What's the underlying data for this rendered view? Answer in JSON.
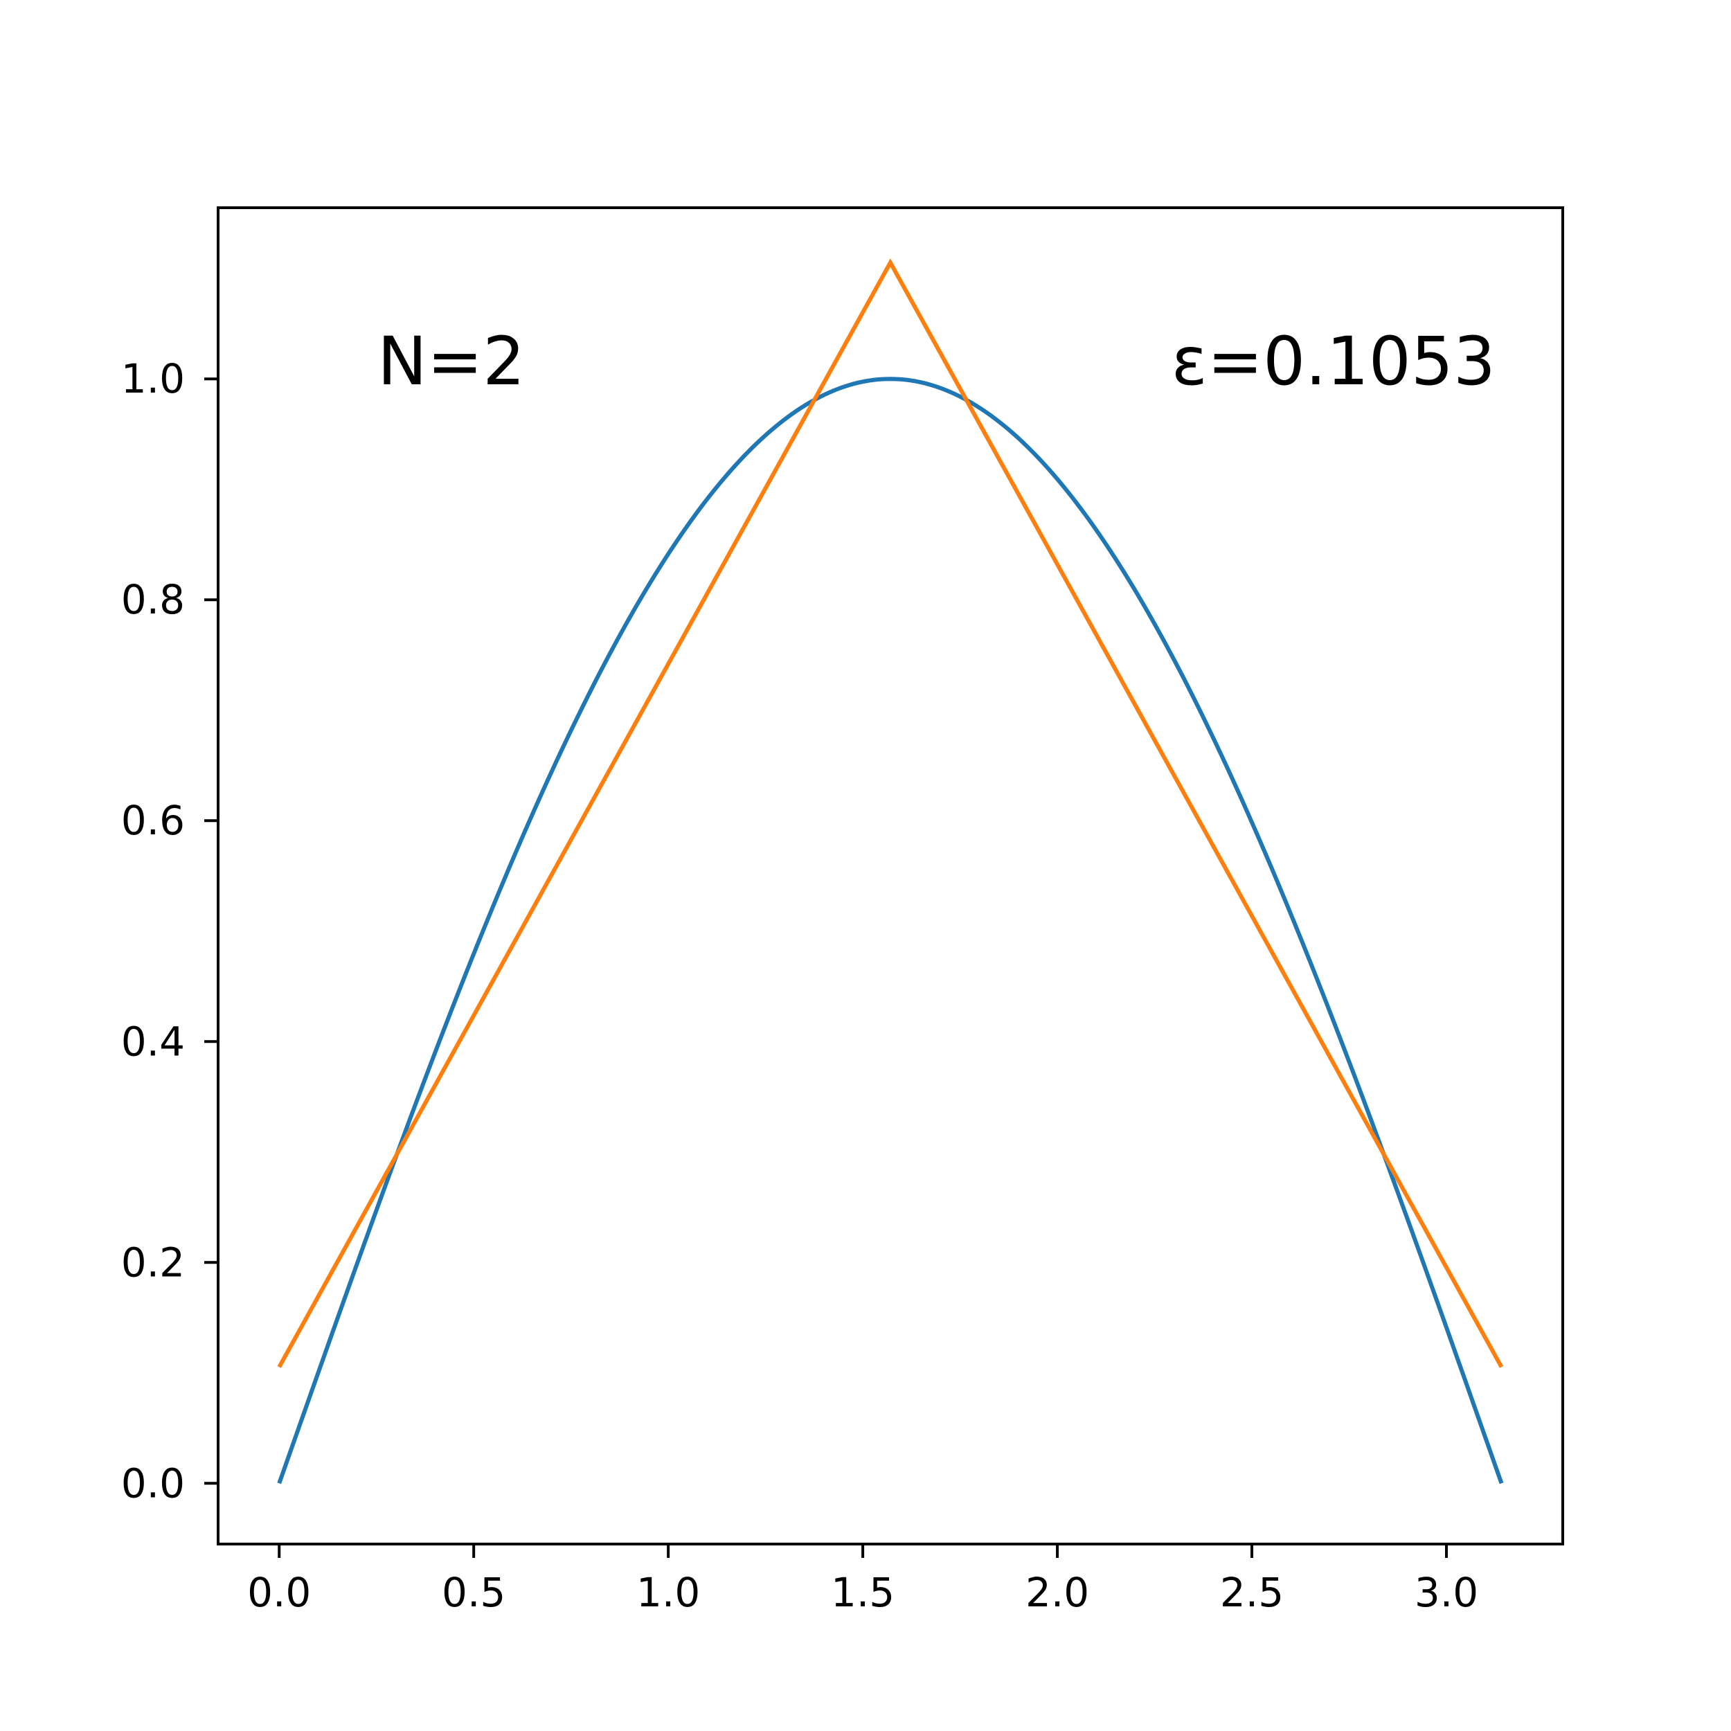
{
  "chart_data": {
    "type": "line",
    "title": "",
    "xlabel": "",
    "ylabel": "",
    "xlim": [
      -0.157,
      3.299
    ],
    "ylim": [
      -0.055,
      1.155
    ],
    "grid": false,
    "xticks": [
      0.0,
      0.5,
      1.0,
      1.5,
      2.0,
      2.5,
      3.0
    ],
    "xtick_labels": [
      "0.0",
      "0.5",
      "1.0",
      "1.5",
      "2.0",
      "2.5",
      "3.0"
    ],
    "yticks": [
      0.0,
      0.2,
      0.4,
      0.6,
      0.8,
      1.0
    ],
    "ytick_labels": [
      "0.0",
      "0.2",
      "0.4",
      "0.6",
      "0.8",
      "1.0"
    ],
    "annotations": {
      "n_label": "N=2",
      "eps_label": "ε=0.1053"
    },
    "series": [
      {
        "color": "#1f77b4",
        "x": [
          0.0,
          0.1309,
          0.2618,
          0.3927,
          0.5236,
          0.6545,
          0.7854,
          0.9163,
          1.0472,
          1.1781,
          1.309,
          1.4399,
          1.5708,
          1.7017,
          1.8326,
          1.9635,
          2.0944,
          2.2253,
          2.3562,
          2.4871,
          2.618,
          2.7489,
          2.8798,
          3.0107,
          3.1416
        ],
        "y": [
          0.0,
          0.1305,
          0.2588,
          0.3827,
          0.5,
          0.6088,
          0.7071,
          0.7934,
          0.866,
          0.9239,
          0.9659,
          0.9914,
          1.0,
          0.9914,
          0.9659,
          0.9239,
          0.866,
          0.7934,
          0.7071,
          0.6088,
          0.5,
          0.3827,
          0.2588,
          0.1305,
          0.0
        ]
      },
      {
        "color": "#ff7f0e",
        "x": [
          0.0,
          1.5708,
          3.1416
        ],
        "y": [
          0.1053,
          1.1053,
          0.1053
        ]
      }
    ]
  }
}
